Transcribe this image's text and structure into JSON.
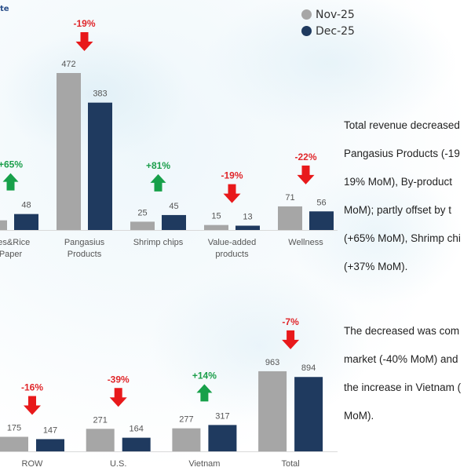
{
  "title_fragment": "te",
  "legend": [
    {
      "name": "Nov-25",
      "color": "#a6a6a6"
    },
    {
      "name": "Dec-25",
      "color": "#1f3a5f"
    }
  ],
  "colors": {
    "nov": "#a6a6a6",
    "dec": "#1f3a5f",
    "up": "#17a04a",
    "down": "#e8191b",
    "up_text": "#1a9e4a",
    "down_text": "#e0262a"
  },
  "chart_data": [
    {
      "type": "bar",
      "series": [
        {
          "name": "Nov-25"
        },
        {
          "name": "Dec-25"
        }
      ],
      "categories": [
        {
          "label": [
            "dles&Rice",
            "Paper"
          ],
          "nov": null,
          "dec": 48,
          "change": "+65%",
          "dir": "up"
        },
        {
          "label": [
            "Pangasius",
            "Products"
          ],
          "nov": 472,
          "dec": 383,
          "change": "-19%",
          "dir": "down"
        },
        {
          "label": [
            "Shrimp chips"
          ],
          "nov": 25,
          "dec": 45,
          "change": "+81%",
          "dir": "up"
        },
        {
          "label": [
            "Value-added",
            "products"
          ],
          "nov": 15,
          "dec": 13,
          "change": "-19%",
          "dir": "down"
        },
        {
          "label": [
            "Wellness"
          ],
          "nov": 71,
          "dec": 56,
          "change": "-22%",
          "dir": "down"
        }
      ]
    },
    {
      "type": "bar",
      "series": [
        {
          "name": "Nov-25"
        },
        {
          "name": "Dec-25"
        }
      ],
      "categories": [
        {
          "label": [
            "ROW"
          ],
          "nov": 175,
          "dec": 147,
          "change": "-16%",
          "dir": "down"
        },
        {
          "label": [
            "U.S."
          ],
          "nov": 271,
          "dec": 164,
          "change": "-39%",
          "dir": "down"
        },
        {
          "label": [
            "Vietnam"
          ],
          "nov": 277,
          "dec": 317,
          "change": "+14%",
          "dir": "up"
        },
        {
          "label": [
            "Total"
          ],
          "nov": 963,
          "dec": 894,
          "change": "-7%",
          "dir": "down"
        }
      ]
    }
  ],
  "commentary": {
    "para1": [
      "Total revenue decreased",
      "Pangasius Products (-19",
      "19% MoM),  By-product",
      "MoM); partly offset by t",
      "(+65% MoM), Shrimp chi",
      "(+37% MoM)."
    ],
    "para2": [
      "The  decreased  was  com",
      "market (-40% MoM) and",
      "the increase in Vietnam (",
      "MoM)."
    ]
  }
}
